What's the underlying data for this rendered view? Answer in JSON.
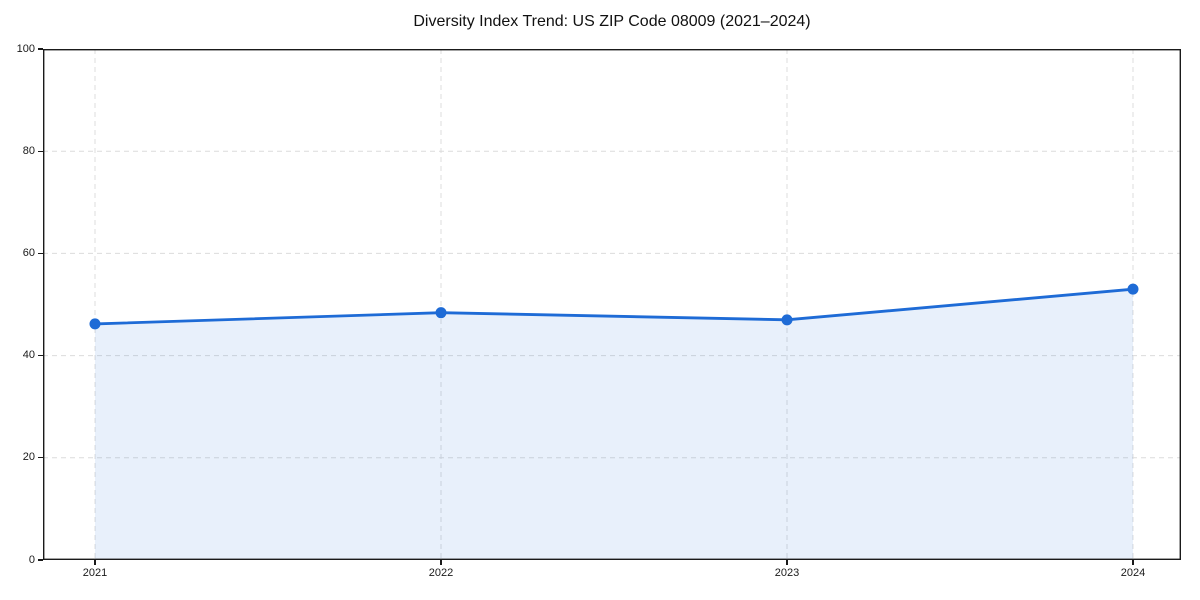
{
  "chart_data": {
    "type": "area",
    "title": "Diversity Index Trend: US ZIP Code 08009 (2021–2024)",
    "categories": [
      "2021",
      "2022",
      "2023",
      "2024"
    ],
    "series": [
      {
        "name": "Diversity Index",
        "values": [
          46.2,
          48.4,
          47.0,
          53.0
        ]
      }
    ],
    "xlabel": "",
    "ylabel": "",
    "ylim": [
      0,
      100
    ],
    "yticks": [
      0,
      20,
      40,
      60,
      80,
      100
    ],
    "grid": "dashed",
    "grid_color": "#dcdcdc",
    "axis_color": "#1a1a1a",
    "text_color": "#1a1a1a",
    "line_color": "#1e6bd6",
    "marker_color": "#1e6bd6",
    "fill_color": "#1e6bd6",
    "fill_opacity": 0.1,
    "marker": "circle",
    "legend_position": "none"
  }
}
